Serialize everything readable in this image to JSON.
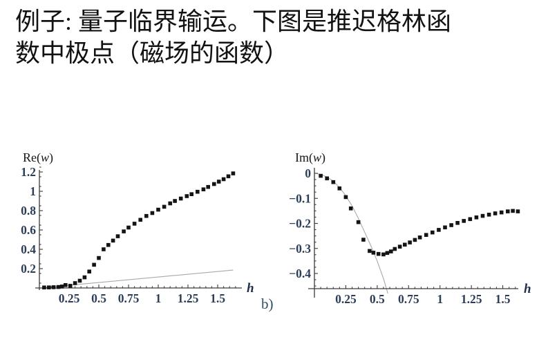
{
  "title": {
    "line1": "例子: 量子临界输运。下图是推迟格林函",
    "line2": "数中极点（磁场的函数）"
  },
  "figure_label": "b)",
  "colors": {
    "background": "#ffffff",
    "title_text": "#121212",
    "axis": "#3a3a3a",
    "tick_label": "#2c3e57",
    "axis_var_label": "#22304a",
    "marker": "#141414",
    "fit_line": "#a8a8a8",
    "figure_label": "#2d4f63"
  },
  "chart_data": [
    {
      "type": "scatter",
      "title": "Re(w)",
      "xlabel": "h",
      "ylabel": "Re(w)",
      "xlim": [
        0,
        1.7
      ],
      "ylim": [
        0,
        1.26
      ],
      "grid": false,
      "legend": "none",
      "xticks": [
        {
          "v": 0.25,
          "label": "0.25"
        },
        {
          "v": 0.5,
          "label": "0.5"
        },
        {
          "v": 0.75,
          "label": "0.75"
        },
        {
          "v": 1,
          "label": "1"
        },
        {
          "v": 1.25,
          "label": "1.25"
        },
        {
          "v": 1.5,
          "label": "1.5"
        }
      ],
      "yticks": [
        {
          "v": 0.2,
          "label": "0.2"
        },
        {
          "v": 0.4,
          "label": "0.4"
        },
        {
          "v": 0.6,
          "label": "0.6"
        },
        {
          "v": 0.8,
          "label": "0.8"
        },
        {
          "v": 1.0,
          "label": "1"
        },
        {
          "v": 1.2,
          "label": "1.2"
        }
      ],
      "series": [
        {
          "name": "pole-real-part-data",
          "kind": "points",
          "marker": "square",
          "points": [
            [
              0.04,
              0.005
            ],
            [
              0.08,
              0.006
            ],
            [
              0.12,
              0.008
            ],
            [
              0.16,
              0.01
            ],
            [
              0.19,
              0.015
            ],
            [
              0.22,
              0.03
            ],
            [
              0.26,
              0.022
            ],
            [
              0.3,
              0.05
            ],
            [
              0.34,
              0.075
            ],
            [
              0.38,
              0.11
            ],
            [
              0.42,
              0.17
            ],
            [
              0.46,
              0.24
            ],
            [
              0.5,
              0.31
            ],
            [
              0.54,
              0.4
            ],
            [
              0.58,
              0.445
            ],
            [
              0.62,
              0.49
            ],
            [
              0.66,
              0.535
            ],
            [
              0.71,
              0.585
            ],
            [
              0.75,
              0.625
            ],
            [
              0.8,
              0.665
            ],
            [
              0.85,
              0.705
            ],
            [
              0.9,
              0.745
            ],
            [
              0.95,
              0.775
            ],
            [
              1.0,
              0.81
            ],
            [
              1.05,
              0.84
            ],
            [
              1.1,
              0.875
            ],
            [
              1.14,
              0.9
            ],
            [
              1.19,
              0.925
            ],
            [
              1.24,
              0.95
            ],
            [
              1.28,
              0.97
            ],
            [
              1.33,
              0.995
            ],
            [
              1.38,
              1.02
            ],
            [
              1.42,
              1.045
            ],
            [
              1.47,
              1.075
            ],
            [
              1.51,
              1.1
            ],
            [
              1.55,
              1.125
            ],
            [
              1.59,
              1.155
            ],
            [
              1.63,
              1.185
            ]
          ]
        },
        {
          "name": "linear-comparison-line",
          "kind": "line",
          "points": [
            [
              0.04,
              0.004
            ],
            [
              1.63,
              0.185
            ]
          ]
        }
      ]
    },
    {
      "type": "scatter",
      "title": "Im(w)",
      "xlabel": "h",
      "ylabel": "Im(w)",
      "xlim": [
        0,
        1.63
      ],
      "ylim": [
        -0.46,
        0.02
      ],
      "grid": false,
      "legend": "none",
      "xticks": [
        {
          "v": 0.25,
          "label": "0.25"
        },
        {
          "v": 0.5,
          "label": "0.5"
        },
        {
          "v": 0.75,
          "label": "0.75"
        },
        {
          "v": 1,
          "label": "1"
        },
        {
          "v": 1.25,
          "label": "1.25"
        },
        {
          "v": 1.5,
          "label": "1.5"
        }
      ],
      "yticks": [
        {
          "v": 0,
          "label": "0"
        },
        {
          "v": -0.1,
          "label": "−0.1"
        },
        {
          "v": -0.2,
          "label": "−0.2"
        },
        {
          "v": -0.3,
          "label": "−0.3"
        },
        {
          "v": -0.4,
          "label": "−0.4"
        }
      ],
      "series": [
        {
          "name": "pole-imaginary-part-data",
          "kind": "points",
          "marker": "square",
          "points": [
            [
              0.05,
              -0.01
            ],
            [
              0.1,
              -0.02
            ],
            [
              0.15,
              -0.035
            ],
            [
              0.2,
              -0.06
            ],
            [
              0.25,
              -0.095
            ],
            [
              0.29,
              -0.14
            ],
            [
              0.35,
              -0.195
            ],
            [
              0.39,
              -0.265
            ],
            [
              0.44,
              -0.31
            ],
            [
              0.47,
              -0.317
            ],
            [
              0.51,
              -0.322
            ],
            [
              0.55,
              -0.324
            ],
            [
              0.58,
              -0.318
            ],
            [
              0.61,
              -0.312
            ],
            [
              0.64,
              -0.302
            ],
            [
              0.68,
              -0.293
            ],
            [
              0.72,
              -0.285
            ],
            [
              0.76,
              -0.276
            ],
            [
              0.8,
              -0.266
            ],
            [
              0.84,
              -0.256
            ],
            [
              0.89,
              -0.246
            ],
            [
              0.94,
              -0.236
            ],
            [
              0.99,
              -0.226
            ],
            [
              1.04,
              -0.216
            ],
            [
              1.09,
              -0.207
            ],
            [
              1.14,
              -0.198
            ],
            [
              1.19,
              -0.19
            ],
            [
              1.24,
              -0.183
            ],
            [
              1.29,
              -0.176
            ],
            [
              1.34,
              -0.17
            ],
            [
              1.39,
              -0.165
            ],
            [
              1.44,
              -0.16
            ],
            [
              1.49,
              -0.156
            ],
            [
              1.54,
              -0.152
            ],
            [
              1.58,
              -0.15
            ],
            [
              1.62,
              -0.152
            ]
          ]
        },
        {
          "name": "quadratic-fit-curve",
          "kind": "line",
          "points": [
            [
              0.02,
              -0.001
            ],
            [
              0.06,
              -0.006
            ],
            [
              0.1,
              -0.015
            ],
            [
              0.14,
              -0.028
            ],
            [
              0.18,
              -0.046
            ],
            [
              0.22,
              -0.07
            ],
            [
              0.25,
              -0.09
            ],
            [
              0.3,
              -0.13
            ],
            [
              0.35,
              -0.18
            ],
            [
              0.4,
              -0.235
            ],
            [
              0.45,
              -0.29
            ],
            [
              0.5,
              -0.35
            ],
            [
              0.55,
              -0.42
            ],
            [
              0.585,
              -0.48
            ]
          ]
        }
      ]
    }
  ]
}
